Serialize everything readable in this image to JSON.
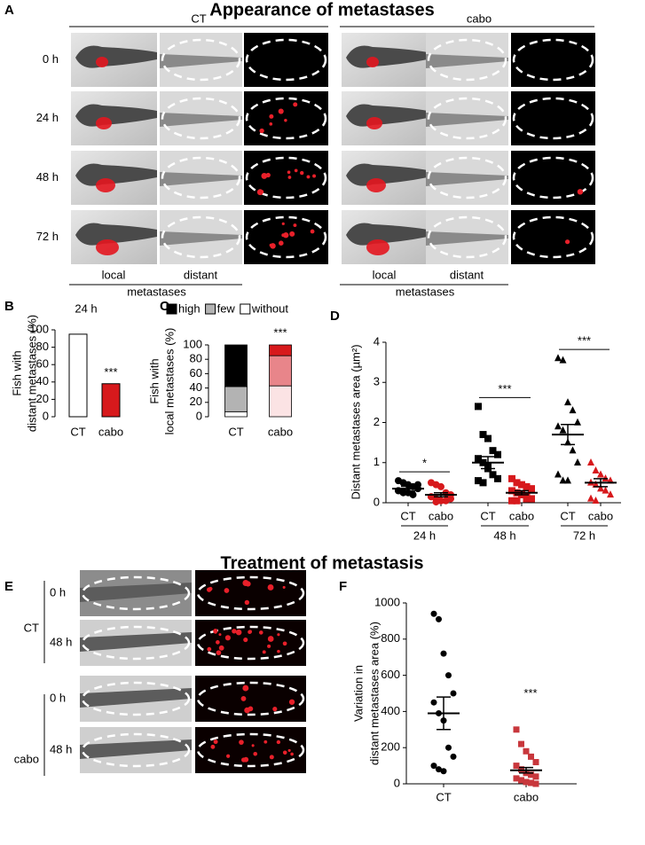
{
  "titles": [
    "Appearance of metastases",
    "Treatment of metastasis"
  ],
  "panel_labels": [
    "A",
    "B",
    "C",
    "D",
    "E",
    "F"
  ],
  "panel_a": {
    "groups": [
      "CT",
      "cabo"
    ],
    "times": [
      "0 h",
      "24 h",
      "48 h",
      "72 h"
    ],
    "columns": [
      "local",
      "distant"
    ],
    "footer": "metastases"
  },
  "panel_e": {
    "groups": [
      "CT",
      "cabo"
    ],
    "times": [
      "0 h",
      "48 h"
    ]
  },
  "chart_data": [
    {
      "type": "bar",
      "title": "24 h",
      "ylabel": [
        "Fish with",
        "distant metastases (%)"
      ],
      "categories": [
        "CT",
        "cabo"
      ],
      "values": [
        95,
        38
      ],
      "colors": [
        "#ffffff",
        "#d7191c"
      ],
      "ylim": [
        0,
        100
      ],
      "yticks": [
        0,
        20,
        40,
        60,
        80,
        100
      ],
      "significance_label": "***"
    },
    {
      "type": "stacked_bar",
      "ylabel": [
        "Fish with",
        "local metastases (%)"
      ],
      "categories": [
        "CT",
        "cabo"
      ],
      "series": [
        {
          "name": "high",
          "color": "#000000",
          "colors": [
            "#000000",
            "#d7191c"
          ],
          "values": [
            58,
            15
          ]
        },
        {
          "name": "few",
          "color": "#b3b3b3",
          "colors": [
            "#b3b3b3",
            "#e8858a"
          ],
          "values": [
            35,
            42
          ]
        },
        {
          "name": "without",
          "color": "#ffffff",
          "colors": [
            "#ffffff",
            "#fbe3e4"
          ],
          "values": [
            7,
            43
          ]
        }
      ],
      "ylim": [
        0,
        100
      ],
      "yticks": [
        0,
        20,
        40,
        60,
        80,
        100
      ],
      "significance_label": "***"
    },
    {
      "type": "dot_plot",
      "ylabel": [
        "Distant metastases area (µm²)"
      ],
      "categories": [
        "CT",
        "cabo",
        "CT",
        "cabo",
        "CT",
        "cabo"
      ],
      "group_labels": [
        "24 h",
        "48 h",
        "72 h"
      ],
      "points": [
        [
          0.55,
          0.5,
          0.45,
          0.4,
          0.35,
          0.3,
          0.28,
          0.25,
          0.2,
          0.45,
          0.3,
          0.25
        ],
        [
          0.5,
          0.45,
          0.4,
          0.25,
          0.2,
          0.15,
          0.1,
          0.05,
          0.05,
          0.1,
          0.15,
          0.02
        ],
        [
          2.4,
          1.7,
          1.6,
          1.3,
          1.2,
          1.1,
          1.0,
          0.9,
          0.7,
          0.6,
          0.55,
          0.5,
          0.85
        ],
        [
          0.6,
          0.5,
          0.45,
          0.4,
          0.35,
          0.3,
          0.25,
          0.2,
          0.15,
          0.1,
          0.05,
          0.05,
          0.2,
          0.1
        ],
        [
          3.6,
          3.55,
          2.5,
          2.3,
          2.0,
          1.9,
          1.8,
          1.5,
          1.3,
          1.0,
          0.7,
          0.55,
          0.55
        ],
        [
          1.0,
          0.8,
          0.7,
          0.6,
          0.55,
          0.5,
          0.45,
          0.35,
          0.3,
          0.2,
          0.1,
          0.05
        ]
      ],
      "means": [
        0.35,
        0.2,
        1.0,
        0.25,
        1.7,
        0.5
      ],
      "sems": [
        0.06,
        0.05,
        0.15,
        0.05,
        0.25,
        0.1
      ],
      "colors": [
        "#000000",
        "#d7191c",
        "#000000",
        "#d7191c",
        "#000000",
        "#d7191c"
      ],
      "markers": [
        "circle",
        "circle",
        "square",
        "square",
        "triangle",
        "triangle"
      ],
      "ylim": [
        0,
        4
      ],
      "yticks": [
        0,
        1,
        2,
        3,
        4
      ],
      "significance_labels": [
        "*",
        "***",
        "***"
      ]
    },
    {
      "type": "dot_plot",
      "ylabel": [
        "Variation in",
        "distant metastases area (%)"
      ],
      "categories": [
        "CT",
        "cabo"
      ],
      "points": [
        [
          940,
          910,
          720,
          600,
          500,
          450,
          390,
          350,
          200,
          150,
          100,
          80,
          70
        ],
        [
          300,
          220,
          180,
          150,
          120,
          100,
          80,
          60,
          50,
          40,
          30,
          20,
          10,
          5,
          0
        ]
      ],
      "means": [
        390,
        75
      ],
      "sems": [
        90,
        15
      ],
      "colors": [
        "#000000",
        "#c8373c"
      ],
      "markers": [
        "circle",
        "square"
      ],
      "ylim": [
        0,
        1000
      ],
      "yticks": [
        0,
        200,
        400,
        600,
        800,
        1000
      ],
      "significance_label": "***"
    }
  ]
}
